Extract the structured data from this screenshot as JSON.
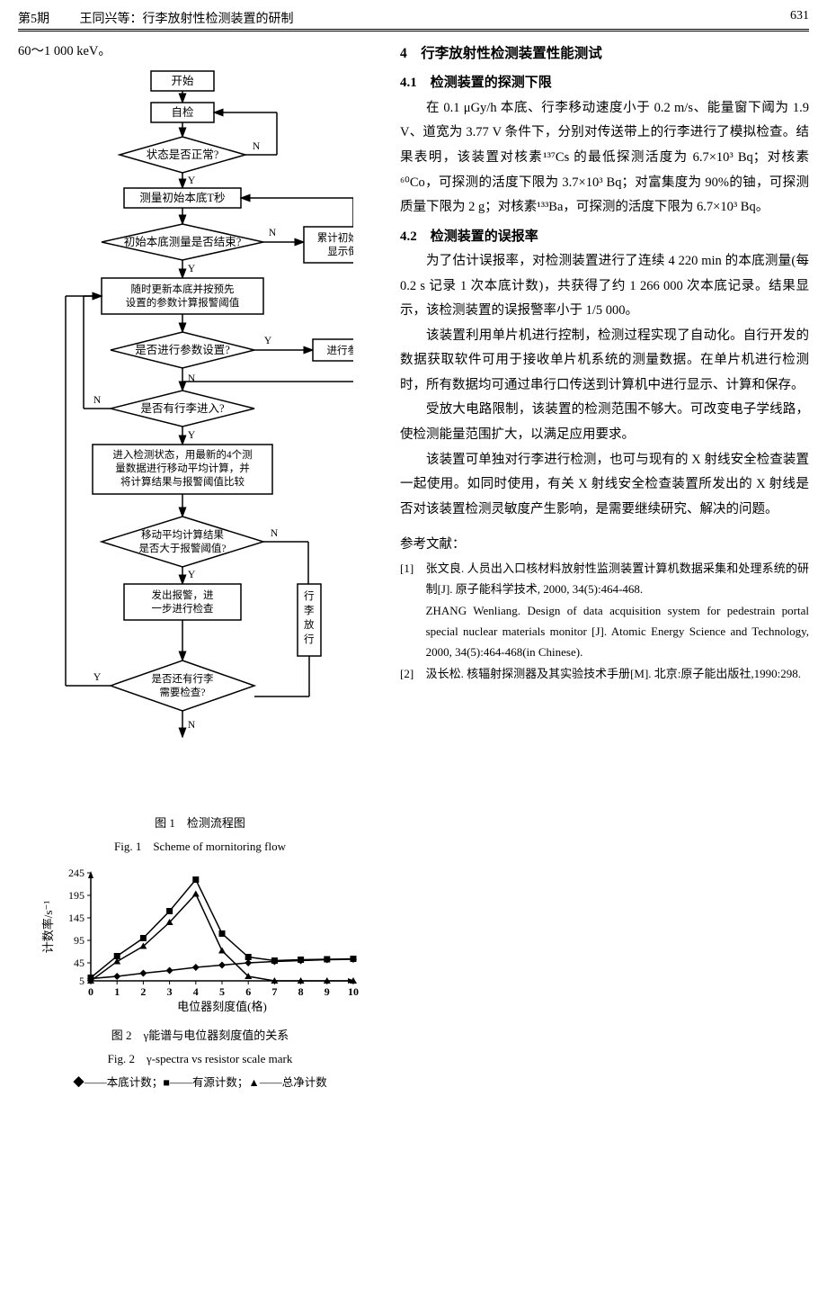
{
  "header": {
    "issue": "第5期",
    "running": "王同兴等：行李放射性检测装置的研制",
    "page": "631"
  },
  "energy_range": "60～1 000 keV。",
  "flowchart": {
    "nodes": {
      "start": "开始",
      "selfcheck": "自检",
      "status_ok": "状态是否正常?",
      "measure_t": "测量初始本底T秒",
      "init_done": "初始本底测量是否结束?",
      "accum": "累计初始本底并显示倒计时",
      "refresh": "随时更新本底并按预先设置的参数计算报警阈值",
      "param_q": "是否进行参数设置?",
      "set_param": "进行参数设置",
      "lug_in": "是否有行李进入?",
      "calc": "进入检测状态，用最新的4个测量数据进行移动平均计算，并将计算结果与报警阈值比较",
      "over": "移动平均计算结果是否大于报警阈值?",
      "alarm": "发出报警，进一步进行检查",
      "release": "行李放行",
      "more": "是否还有行李需要检查?",
      "labels": {
        "Y": "Y",
        "N": "N"
      }
    },
    "caption_cn": "图 1　检测流程图",
    "caption_en": "Fig. 1　Scheme of mornitoring flow"
  },
  "chart": {
    "type": "line",
    "title_cn": "图 2　γ能谱与电位器刻度值的关系",
    "title_en": "Fig. 2　γ-spectra vs resistor scale mark",
    "xlabel": "电位器刻度值(格)",
    "ylabel": "计数率/s⁻¹",
    "legend": "◆——本底计数；■——有源计数；▲——总净计数",
    "ylim": [
      5,
      245
    ],
    "yticks": [
      5,
      45,
      95,
      145,
      195,
      245
    ],
    "xlim": [
      0,
      10
    ],
    "xticks": [
      0,
      1,
      2,
      3,
      4,
      5,
      6,
      7,
      8,
      9,
      10
    ],
    "series": [
      {
        "marker": "diamond",
        "color": "#000000",
        "data": [
          [
            0,
            10
          ],
          [
            1,
            15
          ],
          [
            2,
            22
          ],
          [
            3,
            28
          ],
          [
            4,
            35
          ],
          [
            5,
            40
          ],
          [
            6,
            45
          ],
          [
            7,
            48
          ],
          [
            8,
            50
          ],
          [
            9,
            52
          ],
          [
            10,
            53
          ]
        ]
      },
      {
        "marker": "square",
        "color": "#000000",
        "data": [
          [
            0,
            12
          ],
          [
            1,
            60
          ],
          [
            2,
            100
          ],
          [
            3,
            160
          ],
          [
            4,
            230
          ],
          [
            5,
            110
          ],
          [
            6,
            58
          ],
          [
            7,
            50
          ],
          [
            8,
            52
          ],
          [
            9,
            53
          ],
          [
            10,
            54
          ]
        ]
      },
      {
        "marker": "triangle",
        "color": "#000000",
        "data": [
          [
            0,
            5
          ],
          [
            1,
            48
          ],
          [
            2,
            82
          ],
          [
            3,
            135
          ],
          [
            4,
            198
          ],
          [
            5,
            72
          ],
          [
            6,
            15
          ],
          [
            7,
            5
          ],
          [
            8,
            5
          ],
          [
            9,
            5
          ],
          [
            10,
            5
          ]
        ]
      }
    ],
    "axis_color": "#000000",
    "line_width": 1.5
  },
  "section4": {
    "title": "4　行李放射性检测装置性能测试",
    "s41_title": "4.1　检测装置的探测下限",
    "s41_p": "在 0.1 μGy/h 本底、行李移动速度小于 0.2 m/s、能量窗下阈为 1.9 V、道宽为 3.77 V 条件下，分别对传送带上的行李进行了模拟检查。结果表明，该装置对核素¹³⁷Cs 的最低探测活度为 6.7×10³ Bq；对核素⁶⁰Co，可探测的活度下限为 3.7×10³ Bq；对富集度为 90%的铀，可探测质量下限为 2 g；对核素¹³³Ba，可探测的活度下限为 6.7×10³ Bq。",
    "s42_title": "4.2　检测装置的误报率",
    "s42_p1": "为了估计误报率，对检测装置进行了连续 4 220 min 的本底测量(每 0.2 s 记录 1 次本底计数)，共获得了约 1 266 000 次本底记录。结果显示，该检测装置的误报警率小于 1/5 000。",
    "s42_p2": "该装置利用单片机进行控制，检测过程实现了自动化。自行开发的数据获取软件可用于接收单片机系统的测量数据。在单片机进行检测时，所有数据均可通过串行口传送到计算机中进行显示、计算和保存。",
    "s42_p3": "受放大电路限制，该装置的检测范围不够大。可改变电子学线路，使检测能量范围扩大，以满足应用要求。",
    "s42_p4": "该装置可单独对行李进行检测，也可与现有的 X 射线安全检查装置一起使用。如同时使用，有关 X 射线安全检查装置所发出的 X 射线是否对该装置检测灵敏度产生影响，是需要继续研究、解决的问题。"
  },
  "refs": {
    "title": "参考文献：",
    "items": [
      {
        "num": "[1]",
        "cn": "张文良. 人员出入口核材料放射性监测装置计算机数据采集和处理系统的研制[J]. 原子能科学技术, 2000, 34(5):464-468.",
        "en": "ZHANG Wenliang. Design of data acquisition system for pedestrain portal special nuclear materials monitor [J]. Atomic Energy Science and Technology, 2000, 34(5):464-468(in Chinese)."
      },
      {
        "num": "[2]",
        "cn": "汲长松. 核辐射探测器及其实验技术手册[M]. 北京:原子能出版社,1990:298."
      }
    ]
  }
}
